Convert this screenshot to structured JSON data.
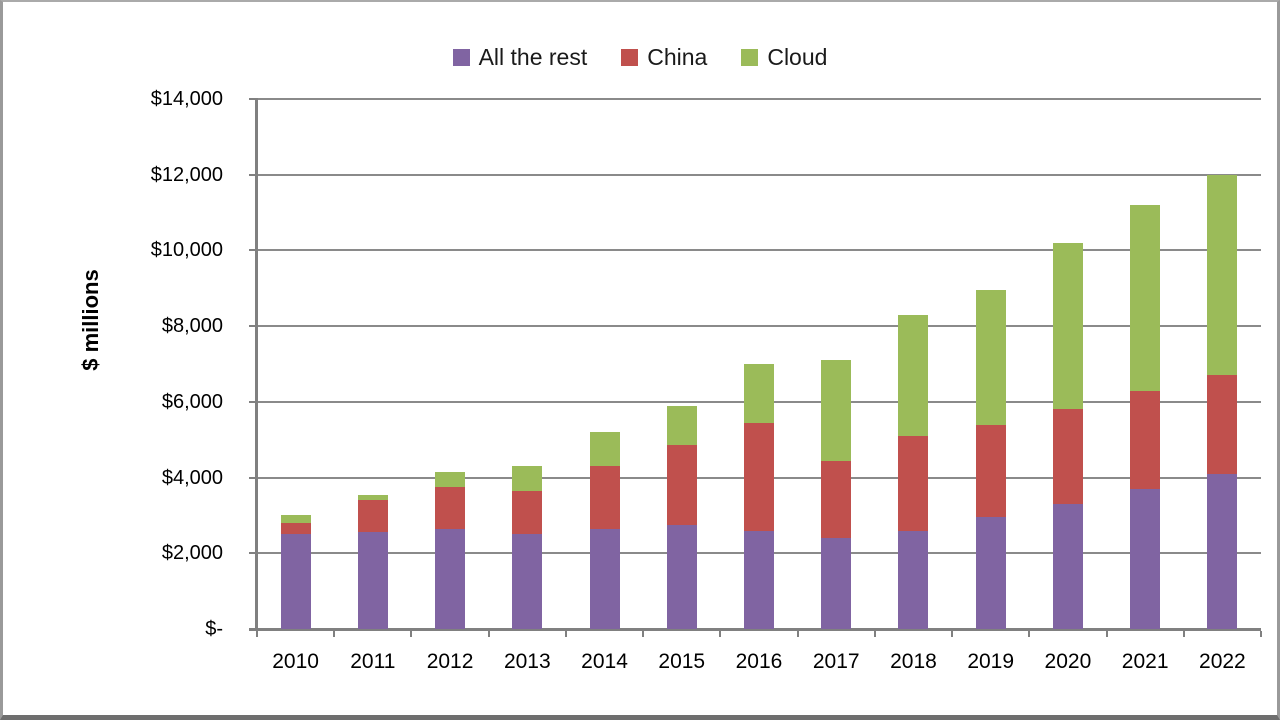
{
  "frame": {
    "background": "#ffffff",
    "border_color": "#9a9a9a"
  },
  "chart_data": {
    "type": "bar",
    "stacked": true,
    "title": "",
    "xlabel": "",
    "ylabel": "$ millions",
    "categories": [
      "2010",
      "2011",
      "2012",
      "2013",
      "2014",
      "2015",
      "2016",
      "2017",
      "2018",
      "2019",
      "2020",
      "2021",
      "2022"
    ],
    "series": [
      {
        "name": "All the rest",
        "color": "#8064A2",
        "values": [
          2500,
          2550,
          2650,
          2500,
          2650,
          2750,
          2600,
          2400,
          2600,
          2950,
          3300,
          3700,
          4100
        ]
      },
      {
        "name": "China",
        "color": "#C0504D",
        "values": [
          300,
          850,
          1100,
          1150,
          1650,
          2100,
          2850,
          2050,
          2500,
          2450,
          2500,
          2600,
          2600
        ]
      },
      {
        "name": "Cloud",
        "color": "#9BBB59",
        "values": [
          200,
          150,
          400,
          650,
          900,
          1050,
          1550,
          2650,
          3200,
          3550,
          4400,
          4900,
          5300
        ]
      }
    ],
    "totals": [
      3000,
      3550,
      4150,
      4300,
      5200,
      5900,
      7000,
      7100,
      8300,
      8950,
      10200,
      11200,
      12000
    ],
    "y_axis": {
      "min": 0,
      "max": 14000,
      "step": 2000,
      "tick_labels": [
        "$-",
        "$2,000",
        "$4,000",
        "$6,000",
        "$8,000",
        "$10,000",
        "$12,000",
        "$14,000"
      ]
    },
    "legend_position": "top",
    "grid": true,
    "gridline_color": "#8a8a8a",
    "axis_color": "#808080",
    "text_color": "#1a1a1a"
  }
}
